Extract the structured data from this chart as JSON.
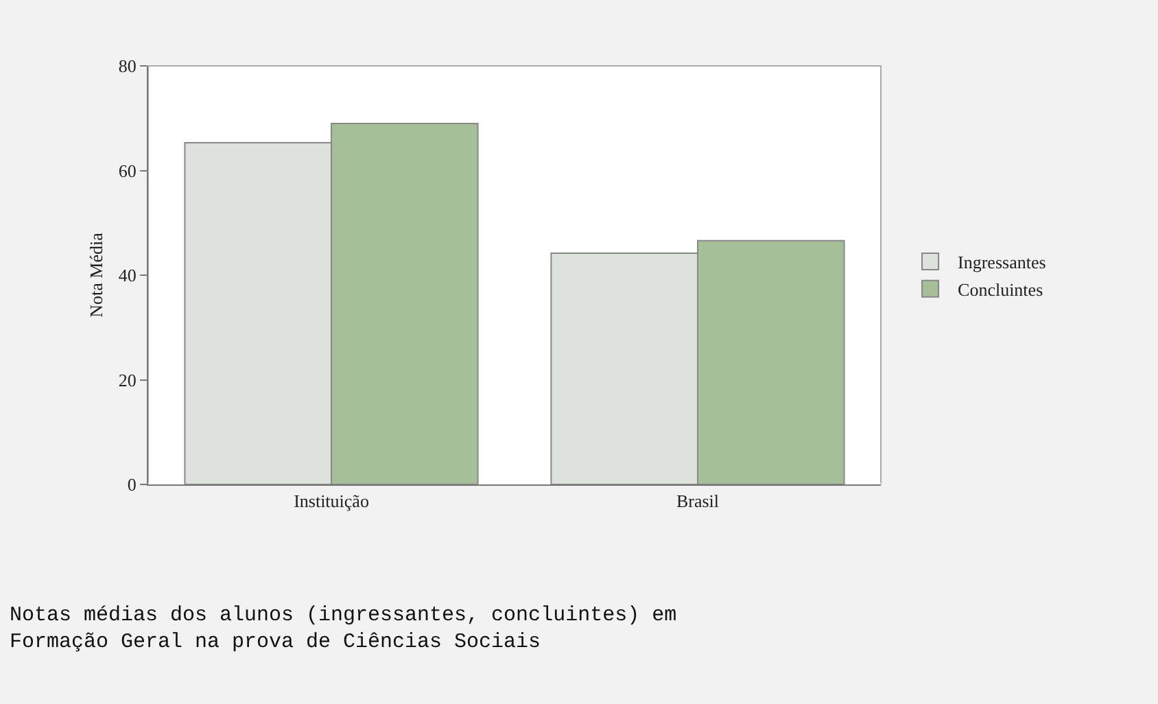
{
  "chart_data": {
    "type": "bar",
    "ylabel": "Nota Média",
    "categories": [
      "Instituição",
      "Brasil"
    ],
    "series": [
      {
        "name": "Ingressantes",
        "color": "#dde3dc",
        "values": [
          65.3,
          44.2
        ]
      },
      {
        "name": "Concluintes",
        "color": "#a6bf98",
        "values": [
          69.0,
          46.6
        ]
      }
    ],
    "ylim": [
      0,
      80
    ],
    "yticks": [
      0,
      20,
      40,
      60,
      80
    ],
    "grid": false,
    "legend": "right",
    "annotations": [
      "Notas médias dos alunos (ingressantes, concluintes) em\nFormação Geral na prova de Ciências Sociais"
    ]
  }
}
